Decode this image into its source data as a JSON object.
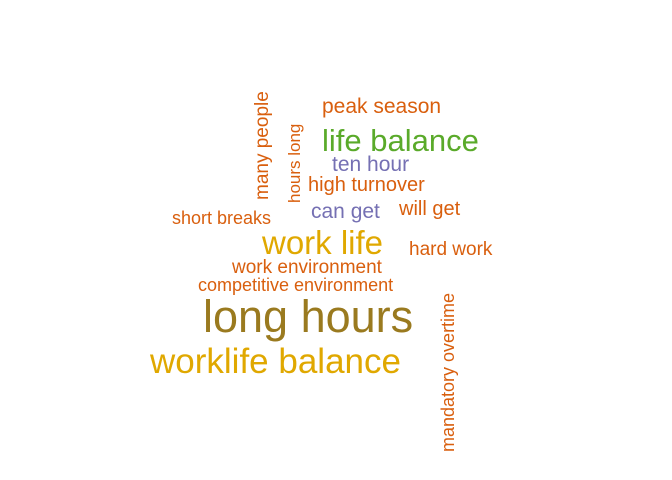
{
  "colors": {
    "olive": "#9a7a1f",
    "gold": "#e0a800",
    "green": "#5aaa2a",
    "orange": "#d95f0e",
    "blue": "#7570b3"
  },
  "words": [
    {
      "text": "long hours",
      "color": "#9a7a1f"
    },
    {
      "text": "worklife balance",
      "color": "#e0a800"
    },
    {
      "text": "work life",
      "color": "#e0a800"
    },
    {
      "text": "life balance",
      "color": "#5aaa2a"
    },
    {
      "text": "peak season",
      "color": "#d95f0e"
    },
    {
      "text": "ten hour",
      "color": "#7570b3"
    },
    {
      "text": "high turnover",
      "color": "#d95f0e"
    },
    {
      "text": "can get",
      "color": "#7570b3"
    },
    {
      "text": "will get",
      "color": "#d95f0e"
    },
    {
      "text": "short breaks",
      "color": "#d95f0e"
    },
    {
      "text": "hard work",
      "color": "#d95f0e"
    },
    {
      "text": "work environment",
      "color": "#d95f0e"
    },
    {
      "text": "competitive environment",
      "color": "#d95f0e"
    },
    {
      "text": "many people",
      "color": "#d95f0e"
    },
    {
      "text": "hours long",
      "color": "#d95f0e"
    },
    {
      "text": "mandatory overtime",
      "color": "#d95f0e"
    }
  ]
}
